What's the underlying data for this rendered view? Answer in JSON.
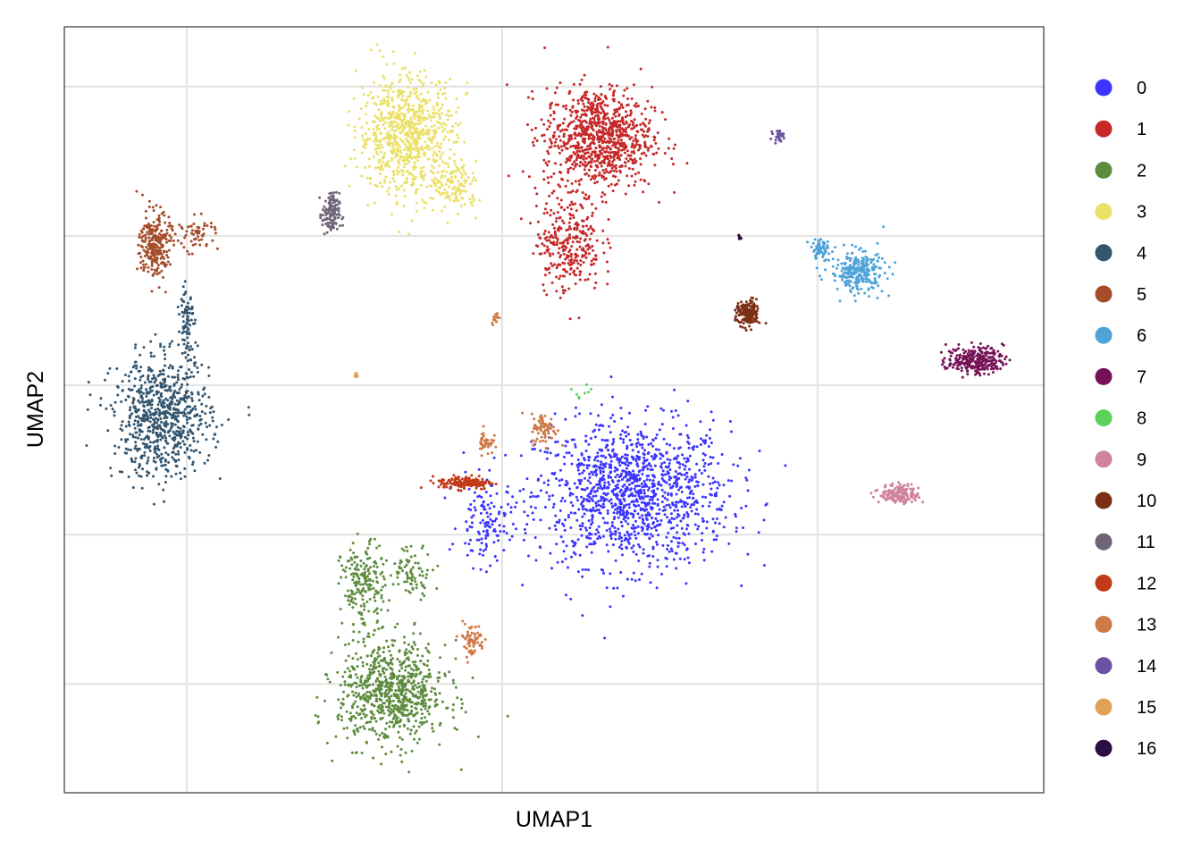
{
  "chart_data": {
    "type": "scatter",
    "title": "",
    "xlabel": "UMAP1",
    "ylabel": "UMAP2",
    "xlim": [
      0,
      1
    ],
    "ylim": [
      0,
      1
    ],
    "grid": true,
    "tick_labels_shown": false,
    "legend_position": "right",
    "series": [
      {
        "name": "0",
        "color": "#3b35ff",
        "clusters": [
          {
            "cx": 0.58,
            "cy": 0.39,
            "sx": 0.09,
            "sy": 0.085,
            "n": 1300
          },
          {
            "cx": 0.43,
            "cy": 0.35,
            "sx": 0.025,
            "sy": 0.05,
            "n": 120
          }
        ]
      },
      {
        "name": "1",
        "color": "#c62828",
        "clusters": [
          {
            "cx": 0.545,
            "cy": 0.855,
            "sx": 0.05,
            "sy": 0.06,
            "n": 900
          },
          {
            "cx": 0.515,
            "cy": 0.72,
            "sx": 0.03,
            "sy": 0.06,
            "n": 300
          }
        ]
      },
      {
        "name": "2",
        "color": "#5e8c3f",
        "clusters": [
          {
            "cx": 0.335,
            "cy": 0.13,
            "sx": 0.05,
            "sy": 0.06,
            "n": 800
          },
          {
            "cx": 0.305,
            "cy": 0.27,
            "sx": 0.02,
            "sy": 0.05,
            "n": 200
          },
          {
            "cx": 0.355,
            "cy": 0.29,
            "sx": 0.02,
            "sy": 0.03,
            "n": 80
          }
        ]
      },
      {
        "name": "3",
        "color": "#ebe068",
        "clusters": [
          {
            "cx": 0.35,
            "cy": 0.86,
            "sx": 0.045,
            "sy": 0.07,
            "n": 800
          },
          {
            "cx": 0.4,
            "cy": 0.79,
            "sx": 0.02,
            "sy": 0.03,
            "n": 120
          }
        ]
      },
      {
        "name": "4",
        "color": "#34556e",
        "clusters": [
          {
            "cx": 0.1,
            "cy": 0.49,
            "sx": 0.045,
            "sy": 0.07,
            "n": 750
          },
          {
            "cx": 0.125,
            "cy": 0.62,
            "sx": 0.006,
            "sy": 0.05,
            "n": 80
          }
        ]
      },
      {
        "name": "5",
        "color": "#a54d2a",
        "clusters": [
          {
            "cx": 0.092,
            "cy": 0.715,
            "sx": 0.014,
            "sy": 0.04,
            "n": 260
          },
          {
            "cx": 0.135,
            "cy": 0.73,
            "sx": 0.02,
            "sy": 0.02,
            "n": 60
          }
        ]
      },
      {
        "name": "6",
        "color": "#4ea3d9",
        "clusters": [
          {
            "cx": 0.81,
            "cy": 0.68,
            "sx": 0.025,
            "sy": 0.025,
            "n": 260
          },
          {
            "cx": 0.772,
            "cy": 0.71,
            "sx": 0.01,
            "sy": 0.012,
            "n": 60
          }
        ]
      },
      {
        "name": "7",
        "color": "#751257",
        "clusters": [
          {
            "cx": 0.93,
            "cy": 0.565,
            "sx": 0.026,
            "sy": 0.016,
            "n": 260
          }
        ]
      },
      {
        "name": "8",
        "color": "#5bd35b",
        "clusters": [
          {
            "cx": 0.53,
            "cy": 0.52,
            "sx": 0.01,
            "sy": 0.02,
            "n": 8
          }
        ]
      },
      {
        "name": "9",
        "color": "#d0829e",
        "clusters": [
          {
            "cx": 0.853,
            "cy": 0.39,
            "sx": 0.018,
            "sy": 0.011,
            "n": 170
          }
        ]
      },
      {
        "name": "10",
        "color": "#7b3015",
        "clusters": [
          {
            "cx": 0.698,
            "cy": 0.625,
            "sx": 0.011,
            "sy": 0.016,
            "n": 170
          }
        ]
      },
      {
        "name": "11",
        "color": "#706479",
        "clusters": [
          {
            "cx": 0.272,
            "cy": 0.755,
            "sx": 0.008,
            "sy": 0.025,
            "n": 130
          }
        ]
      },
      {
        "name": "12",
        "color": "#c23a18",
        "clusters": [
          {
            "cx": 0.41,
            "cy": 0.405,
            "sx": 0.025,
            "sy": 0.008,
            "n": 160
          }
        ]
      },
      {
        "name": "13",
        "color": "#cf7a48",
        "clusters": [
          {
            "cx": 0.49,
            "cy": 0.475,
            "sx": 0.012,
            "sy": 0.018,
            "n": 80
          },
          {
            "cx": 0.43,
            "cy": 0.458,
            "sx": 0.007,
            "sy": 0.015,
            "n": 40
          },
          {
            "cx": 0.416,
            "cy": 0.2,
            "sx": 0.012,
            "sy": 0.02,
            "n": 70
          },
          {
            "cx": 0.44,
            "cy": 0.62,
            "sx": 0.003,
            "sy": 0.007,
            "n": 15
          }
        ]
      },
      {
        "name": "14",
        "color": "#6a52a2",
        "clusters": [
          {
            "cx": 0.729,
            "cy": 0.858,
            "sx": 0.005,
            "sy": 0.006,
            "n": 30
          }
        ]
      },
      {
        "name": "15",
        "color": "#e0a256",
        "clusters": [
          {
            "cx": 0.298,
            "cy": 0.545,
            "sx": 0.002,
            "sy": 0.003,
            "n": 10
          }
        ]
      },
      {
        "name": "16",
        "color": "#2a0f45",
        "clusters": [
          {
            "cx": 0.69,
            "cy": 0.725,
            "sx": 0.0015,
            "sy": 0.004,
            "n": 8
          }
        ]
      }
    ]
  }
}
